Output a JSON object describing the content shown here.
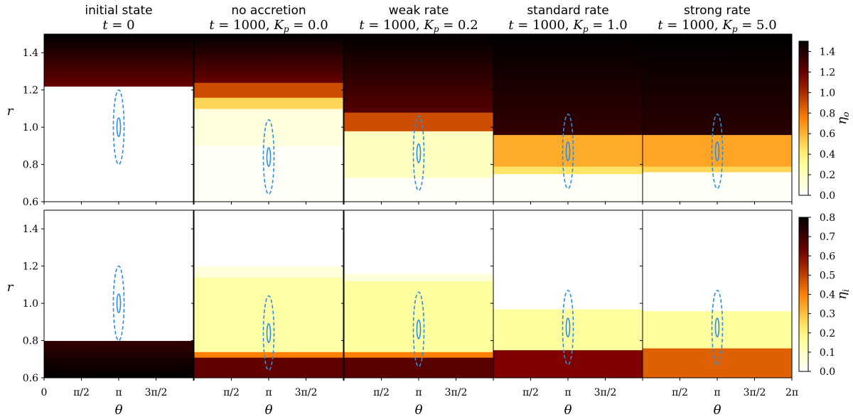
{
  "chart_data": {
    "type": "heatmap",
    "layout": "2 rows x 5 columns of (theta, r) colour maps sharing axes",
    "panels": [
      {
        "title": "initial state",
        "subtitle": "t = 0"
      },
      {
        "title": "no accretion",
        "subtitle": "t = 1000, K_p = 0.0"
      },
      {
        "title": "weak rate",
        "subtitle": "t = 1000, K_p = 0.2"
      },
      {
        "title": "standard rate",
        "subtitle": "t = 1000, K_p = 1.0"
      },
      {
        "title": "strong rate",
        "subtitle": "t = 1000, K_p = 5.0"
      }
    ],
    "xlabel": "θ",
    "ylabel": "r",
    "xlim": [
      0,
      6.2832
    ],
    "ylim": [
      0.6,
      1.5
    ],
    "x_ticks": [
      {
        "value": 0,
        "label": "0"
      },
      {
        "value": 1.5708,
        "label": "π/2"
      },
      {
        "value": 3.1416,
        "label": "π"
      },
      {
        "value": 4.7124,
        "label": "3π/2"
      },
      {
        "value": 6.2832,
        "label": "2π"
      }
    ],
    "y_ticks": [
      {
        "value": 0.6,
        "label": "0.6"
      },
      {
        "value": 0.8,
        "label": "0.8"
      },
      {
        "value": 1.0,
        "label": "1.0"
      },
      {
        "value": 1.2,
        "label": "1.2"
      },
      {
        "value": 1.4,
        "label": "1.4"
      }
    ],
    "rows": [
      {
        "field": "eta_o",
        "colorbar_label": "η_o",
        "colorbar_range": [
          0,
          1.5
        ],
        "colorbar_ticks": [
          "0.0",
          "0.2",
          "0.4",
          "0.6",
          "0.8",
          "1.0",
          "1.2",
          "1.4"
        ],
        "bands": [
          [
            {
              "r0": 0.6,
              "r1": 1.22,
              "v": 0.0
            },
            {
              "r0": 1.22,
              "r1": 1.5,
              "v": 1.2,
              "v_top": 1.5
            }
          ],
          [
            {
              "r0": 0.6,
              "r1": 0.9,
              "v": 0.02
            },
            {
              "r0": 0.9,
              "r1": 1.1,
              "v": 0.1
            },
            {
              "r0": 1.1,
              "r1": 1.16,
              "v": 0.5
            },
            {
              "r0": 1.16,
              "r1": 1.24,
              "v": 0.9
            },
            {
              "r0": 1.24,
              "r1": 1.5,
              "v": 1.2,
              "v_top": 1.5
            }
          ],
          [
            {
              "r0": 0.6,
              "r1": 0.73,
              "v": 0.02
            },
            {
              "r0": 0.73,
              "r1": 0.98,
              "v": 0.18
            },
            {
              "r0": 0.98,
              "r1": 1.08,
              "v": 0.9
            },
            {
              "r0": 1.08,
              "r1": 1.5,
              "v": 1.25,
              "v_top": 1.5
            }
          ],
          [
            {
              "r0": 0.6,
              "r1": 0.75,
              "v": 0.02
            },
            {
              "r0": 0.75,
              "r1": 0.79,
              "v": 0.45
            },
            {
              "r0": 0.79,
              "r1": 0.96,
              "v": 0.62
            },
            {
              "r0": 0.96,
              "r1": 1.5,
              "v": 1.35,
              "v_top": 1.5
            }
          ],
          [
            {
              "r0": 0.6,
              "r1": 0.76,
              "v": 0.02
            },
            {
              "r0": 0.76,
              "r1": 0.79,
              "v": 0.5
            },
            {
              "r0": 0.79,
              "r1": 0.96,
              "v": 0.64
            },
            {
              "r0": 0.96,
              "r1": 1.5,
              "v": 1.38,
              "v_top": 1.5
            }
          ]
        ]
      },
      {
        "field": "eta_i",
        "colorbar_label": "η_i",
        "colorbar_range": [
          0,
          0.8
        ],
        "colorbar_ticks": [
          "0.0",
          "0.1",
          "0.2",
          "0.3",
          "0.4",
          "0.5",
          "0.6",
          "0.7",
          "0.8"
        ],
        "bands": [
          [
            {
              "r0": 0.6,
              "r1": 0.8,
              "v": 0.8,
              "v_top": 0.72
            },
            {
              "r0": 0.8,
              "r1": 1.5,
              "v": 0.0
            }
          ],
          [
            {
              "r0": 0.6,
              "r1": 0.71,
              "v": 0.65
            },
            {
              "r0": 0.71,
              "r1": 0.74,
              "v": 0.4
            },
            {
              "r0": 0.74,
              "r1": 1.14,
              "v": 0.14
            },
            {
              "r0": 1.14,
              "r1": 1.2,
              "v": 0.06
            },
            {
              "r0": 1.2,
              "r1": 1.5,
              "v": 0.0
            }
          ],
          [
            {
              "r0": 0.6,
              "r1": 0.71,
              "v": 0.66
            },
            {
              "r0": 0.71,
              "r1": 0.74,
              "v": 0.4
            },
            {
              "r0": 0.74,
              "r1": 1.12,
              "v": 0.15
            },
            {
              "r0": 1.12,
              "r1": 1.16,
              "v": 0.06
            },
            {
              "r0": 1.16,
              "r1": 1.5,
              "v": 0.0
            }
          ],
          [
            {
              "r0": 0.6,
              "r1": 0.75,
              "v": 0.6
            },
            {
              "r0": 0.75,
              "r1": 0.97,
              "v": 0.15
            },
            {
              "r0": 0.97,
              "r1": 1.5,
              "v": 0.0
            }
          ],
          [
            {
              "r0": 0.6,
              "r1": 0.76,
              "v": 0.45
            },
            {
              "r0": 0.76,
              "r1": 0.96,
              "v": 0.15
            },
            {
              "r0": 0.96,
              "r1": 1.5,
              "v": 0.0
            }
          ]
        ]
      }
    ],
    "overlays": {
      "description": "blue dashed ellipse (outer) and solid small ellipse (inner) centred at theta = π",
      "color": "#2d8fe0",
      "center_r_by_panel": [
        1.0,
        0.84,
        0.86,
        0.87,
        0.87
      ],
      "outer_half_height_r": 0.2,
      "inner_half_height_r": 0.05
    },
    "colormap": "afmhot_r (white → yellow → orange → red → black)"
  }
}
